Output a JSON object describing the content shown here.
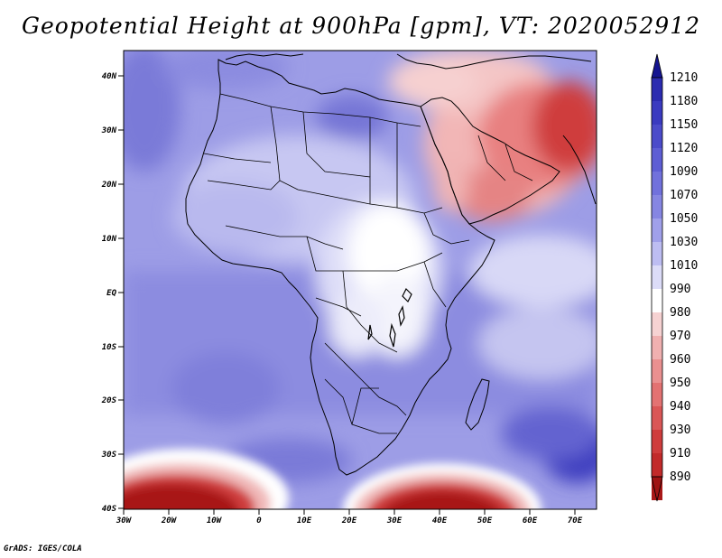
{
  "title": "Geopotential Height at 900hPa [gpm], VT: 2020052912",
  "footer": "GrADS: IGES/COLA",
  "map": {
    "region": "Africa",
    "lon_range": [
      -30,
      75
    ],
    "lat_range": [
      -40,
      45
    ],
    "lat_ticks": [
      "40N",
      "30N",
      "20N",
      "10N",
      "EQ",
      "10S",
      "20S",
      "30S",
      "40S"
    ],
    "lon_ticks": [
      "30W",
      "20W",
      "10W",
      "0",
      "10E",
      "20E",
      "30E",
      "40E",
      "50E",
      "60E",
      "70E"
    ]
  },
  "colorbar": {
    "levels": [
      "1210",
      "1180",
      "1150",
      "1120",
      "1090",
      "1070",
      "1050",
      "1030",
      "1010",
      "990",
      "980",
      "970",
      "960",
      "950",
      "940",
      "930",
      "910",
      "890"
    ],
    "colors": [
      "#1c1c9e",
      "#2b2bb0",
      "#3a3ac0",
      "#4b4bca",
      "#5e5ed4",
      "#7171dc",
      "#8686e2",
      "#a0a0ea",
      "#bdbdf2",
      "#dcdcf8",
      "#ffffff",
      "#f6d2d2",
      "#f0b0b0",
      "#ea9090",
      "#e37272",
      "#da5656",
      "#cf3c3c",
      "#c22a2a",
      "#a81818"
    ],
    "top_color": "#141490",
    "bottom_color": "#a01414"
  }
}
